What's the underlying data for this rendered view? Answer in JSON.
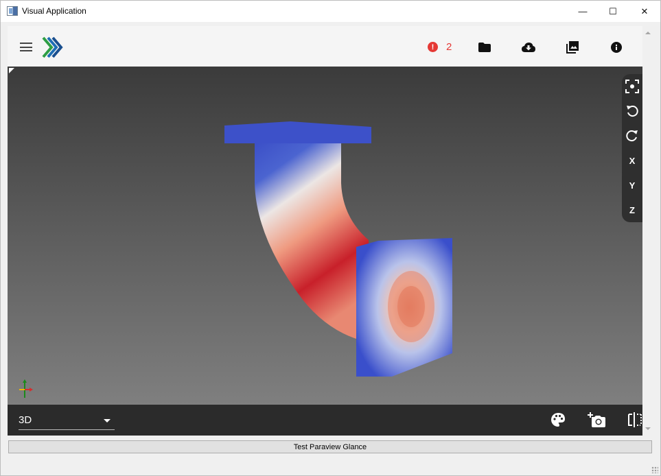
{
  "window": {
    "title": "Visual Application",
    "minimize_glyph": "—",
    "maximize_glyph": "☐",
    "close_glyph": "✕"
  },
  "toolbar": {
    "menu_icon": "hamburger-menu-icon",
    "logo_icon": "chevrons-logo-icon",
    "error_icon": "error-alert-icon",
    "error_count": "2",
    "error_glyph": "!",
    "icons": [
      "folder-icon",
      "cloud-download-icon",
      "images-icon",
      "info-icon"
    ],
    "error_color": "#e53935"
  },
  "viewport": {
    "right_tools": [
      "fit-view-icon",
      "rotate-left-icon",
      "rotate-right-icon",
      "X",
      "Y",
      "Z"
    ],
    "axes_icon": "orientation-axes-icon"
  },
  "bottom_bar": {
    "view_mode": "3D",
    "icons": [
      "palette-icon",
      "add-screenshot-icon",
      "split-view-icon"
    ]
  },
  "test_button": {
    "label": "Test Paraview Glance"
  }
}
